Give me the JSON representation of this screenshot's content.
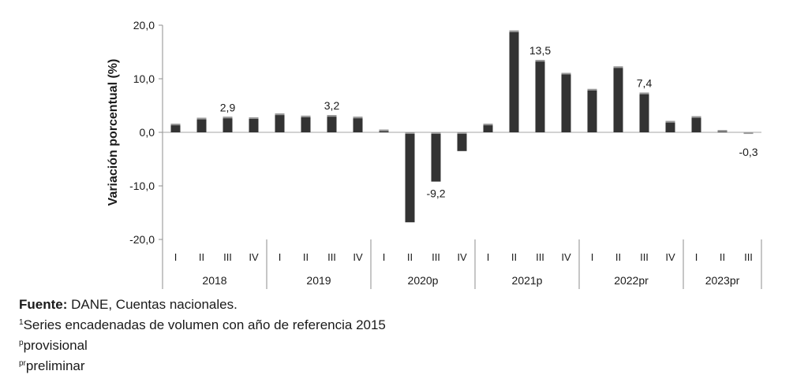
{
  "chart_data": {
    "type": "bar",
    "ylabel": "Variación porcentual (%)",
    "ylim": [
      -20,
      20
    ],
    "yticks": [
      "20,0",
      "10,0",
      "0,0",
      "-10,0",
      "-20,0"
    ],
    "ytick_values": [
      20,
      10,
      0,
      -10,
      -20
    ],
    "groups": [
      {
        "label": "2018",
        "quarters": [
          "I",
          "II",
          "III",
          "IV"
        ],
        "values": [
          1.6,
          2.7,
          2.9,
          2.8
        ]
      },
      {
        "label": "2019",
        "quarters": [
          "I",
          "II",
          "III",
          "IV"
        ],
        "values": [
          3.5,
          3.1,
          3.2,
          2.9
        ]
      },
      {
        "label": "2020p",
        "quarters": [
          "I",
          "II",
          "III",
          "IV"
        ],
        "values": [
          0.5,
          -16.8,
          -9.2,
          -3.5
        ]
      },
      {
        "label": "2021p",
        "quarters": [
          "I",
          "II",
          "III",
          "IV"
        ],
        "values": [
          1.6,
          19.0,
          13.5,
          11.1
        ]
      },
      {
        "label": "2022pr",
        "quarters": [
          "I",
          "II",
          "III",
          "IV"
        ],
        "values": [
          8.1,
          12.3,
          7.4,
          2.1
        ]
      },
      {
        "label": "2023pr",
        "quarters": [
          "I",
          "II",
          "III"
        ],
        "values": [
          3.0,
          0.4,
          -0.3
        ]
      }
    ],
    "data_labels": [
      {
        "group": 0,
        "quarter": 2,
        "text": "2,9"
      },
      {
        "group": 1,
        "quarter": 2,
        "text": "3,2"
      },
      {
        "group": 2,
        "quarter": 2,
        "text": "-9,2"
      },
      {
        "group": 3,
        "quarter": 2,
        "text": "13,5"
      },
      {
        "group": 4,
        "quarter": 2,
        "text": "7,4"
      },
      {
        "group": 5,
        "quarter": 2,
        "text": "-0,3"
      }
    ],
    "bar_color": "#333333",
    "grid": false
  },
  "notes": {
    "source_label": "Fuente:",
    "source_text": " DANE, Cuentas nacionales.",
    "note1_mark": "1",
    "note1_text": "Series encadenadas de volumen con año de referencia 2015",
    "note2_mark": "p",
    "note2_text": "provisional",
    "note3_mark": "pr",
    "note3_text": "preliminar"
  }
}
